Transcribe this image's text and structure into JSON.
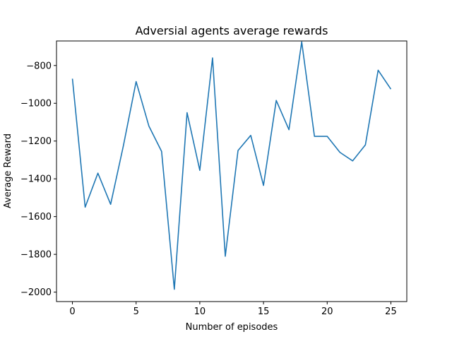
{
  "chart_data": {
    "type": "line",
    "title": "Adversial agents average rewards",
    "xlabel": "Number of episodes",
    "ylabel": "Average Reward",
    "xlim": [
      -1.25,
      26.25
    ],
    "ylim": [
      -2050,
      -670
    ],
    "xticks": [
      0,
      5,
      10,
      15,
      20,
      25
    ],
    "yticks": [
      -2000,
      -1800,
      -1600,
      -1400,
      -1200,
      -1000,
      -800
    ],
    "grid": false,
    "series": [
      {
        "color": "#1f77b4",
        "x": [
          0,
          1,
          2,
          3,
          4,
          5,
          6,
          7,
          8,
          9,
          10,
          11,
          12,
          13,
          14,
          15,
          16,
          17,
          18,
          19,
          20,
          21,
          22,
          23,
          24,
          25
        ],
        "y": [
          -870,
          -1550,
          -1370,
          -1535,
          -1225,
          -885,
          -1120,
          -1255,
          -1985,
          -1050,
          -1355,
          -760,
          -1810,
          -1250,
          -1170,
          -1435,
          -985,
          -1140,
          -675,
          -1175,
          -1175,
          -1260,
          -1305,
          -1220,
          -825,
          -925
        ]
      }
    ]
  }
}
